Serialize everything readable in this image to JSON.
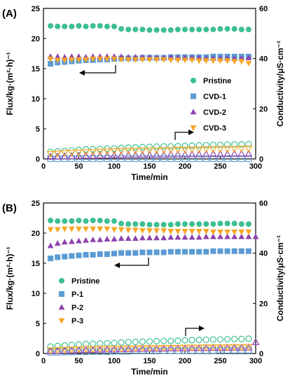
{
  "chart_data": [
    {
      "type": "scatter",
      "panel_label": "(A)",
      "xlabel": "Time/min",
      "ylabel": "Flux/kg·(m²·h)⁻¹",
      "y2label": "Conductivity/μS·cm⁻¹",
      "xlim": [
        0,
        300
      ],
      "ylim": [
        0,
        25
      ],
      "y2lim": [
        0,
        60
      ],
      "xticks": [
        "0",
        "50",
        "100",
        "150",
        "200",
        "250",
        "300"
      ],
      "yticks": [
        "0",
        "5",
        "10",
        "15",
        "20",
        "25"
      ],
      "y2ticks": [
        "0",
        "20",
        "40",
        "60"
      ],
      "grid": false,
      "legend_placement": "center-right",
      "series": [
        {
          "name": "Pristine",
          "color": "#3dbf8f",
          "marker": "circle",
          "x": [
            10,
            20,
            30,
            40,
            50,
            60,
            70,
            80,
            90,
            100,
            110,
            120,
            130,
            140,
            150,
            160,
            170,
            180,
            190,
            200,
            210,
            220,
            230,
            240,
            250,
            260,
            270,
            280,
            290
          ],
          "flux": [
            22.1,
            22.0,
            22.0,
            22.0,
            22.1,
            22.0,
            22.1,
            22.1,
            22.0,
            22.0,
            21.6,
            21.5,
            21.5,
            21.5,
            21.4,
            21.4,
            21.4,
            21.4,
            21.5,
            21.5,
            21.5,
            21.5,
            21.5,
            21.5,
            21.6,
            21.6,
            21.6,
            21.5,
            21.5
          ],
          "conductivity": [
            2.8,
            3.0,
            3.2,
            3.4,
            3.6,
            3.8,
            3.9,
            4.0,
            4.1,
            4.2,
            4.4,
            4.5,
            4.6,
            4.7,
            4.8,
            4.9,
            5.0,
            5.0,
            5.1,
            5.2,
            5.3,
            5.4,
            5.5,
            5.6,
            5.6,
            5.7,
            5.8,
            5.8,
            5.9
          ]
        },
        {
          "name": "CVD-1",
          "color": "#5b9bd5",
          "marker": "square",
          "x": [
            10,
            20,
            30,
            40,
            50,
            60,
            70,
            80,
            90,
            100,
            110,
            120,
            130,
            140,
            150,
            160,
            170,
            180,
            190,
            200,
            210,
            220,
            230,
            240,
            250,
            260,
            270,
            280,
            290
          ],
          "flux": [
            15.8,
            16.0,
            16.1,
            16.2,
            16.3,
            16.4,
            16.4,
            16.5,
            16.5,
            16.6,
            16.7,
            16.7,
            16.7,
            16.8,
            16.8,
            16.8,
            16.8,
            16.9,
            16.9,
            16.9,
            16.9,
            16.9,
            16.9,
            17.0,
            17.0,
            17.0,
            17.0,
            17.0,
            17.0
          ],
          "conductivity": [
            0.1,
            0.1,
            0.1,
            0.1,
            0.1,
            0.1,
            0.1,
            0.1,
            0.1,
            0.1,
            0.1,
            0.1,
            0.1,
            0.1,
            0.1,
            0.1,
            0.1,
            0.1,
            0.1,
            0.1,
            0.1,
            0.1,
            0.1,
            0.1,
            0.1,
            0.1,
            0.1,
            0.1,
            0.1
          ]
        },
        {
          "name": "CVD-2",
          "color": "#8e44ad",
          "marker": "triangle-up",
          "x": [
            10,
            20,
            30,
            40,
            50,
            60,
            70,
            80,
            90,
            100,
            110,
            120,
            130,
            140,
            150,
            160,
            170,
            180,
            190,
            200,
            210,
            220,
            230,
            240,
            250,
            260,
            270,
            280,
            290
          ],
          "flux": [
            17.0,
            17.0,
            16.9,
            17.0,
            17.0,
            16.9,
            17.0,
            17.0,
            17.0,
            17.0,
            17.0,
            16.9,
            16.9,
            16.9,
            16.9,
            16.8,
            16.8,
            16.9,
            16.8,
            16.8,
            16.8,
            16.8,
            16.7,
            16.7,
            16.7,
            16.7,
            16.7,
            16.7,
            16.8
          ],
          "conductivity": [
            0.8,
            0.9,
            1.0,
            1.0,
            1.1,
            1.2,
            1.2,
            1.3,
            1.3,
            1.4,
            1.4,
            1.5,
            1.5,
            1.5,
            1.6,
            1.6,
            1.6,
            1.7,
            1.7,
            1.7,
            1.8,
            1.8,
            1.8,
            1.9,
            1.9,
            1.9,
            2.0,
            2.0,
            2.0
          ]
        },
        {
          "name": "CVD-3",
          "color": "#f5a623",
          "marker": "triangle-down",
          "x": [
            10,
            20,
            30,
            40,
            50,
            60,
            70,
            80,
            90,
            100,
            110,
            120,
            130,
            140,
            150,
            160,
            170,
            180,
            190,
            200,
            210,
            220,
            230,
            240,
            250,
            260,
            270,
            280,
            290
          ],
          "flux": [
            16.6,
            16.4,
            16.4,
            16.5,
            16.5,
            16.5,
            16.6,
            16.6,
            16.6,
            16.6,
            16.5,
            16.5,
            16.5,
            16.5,
            16.5,
            16.5,
            16.5,
            16.4,
            16.4,
            16.4,
            16.4,
            16.3,
            16.3,
            16.3,
            16.3,
            16.3,
            16.2,
            16.2,
            15.9
          ],
          "conductivity": [
            2.0,
            2.2,
            2.4,
            2.5,
            2.6,
            2.7,
            2.8,
            2.9,
            3.0,
            3.1,
            3.2,
            3.3,
            3.3,
            3.4,
            3.5,
            3.5,
            3.6,
            3.6,
            3.7,
            3.7,
            3.8,
            3.8,
            3.9,
            3.9,
            4.0,
            4.0,
            4.0,
            4.1,
            4.1
          ]
        }
      ]
    },
    {
      "type": "scatter",
      "panel_label": "(B)",
      "xlabel": "Time/min",
      "ylabel": "Flux/kg·(m²·h)⁻¹",
      "y2label": "Conductivity/μS·cm⁻¹",
      "xlim": [
        0,
        300
      ],
      "ylim": [
        0,
        25
      ],
      "y2lim": [
        0,
        60
      ],
      "xticks": [
        "0",
        "50",
        "100",
        "150",
        "200",
        "250",
        "300"
      ],
      "yticks": [
        "0",
        "5",
        "10",
        "15",
        "20",
        "25"
      ],
      "y2ticks": [
        "0",
        "20",
        "40",
        "60"
      ],
      "grid": false,
      "legend_placement": "center-left",
      "series": [
        {
          "name": "Pristine",
          "color": "#3dbf8f",
          "marker": "circle",
          "x": [
            10,
            20,
            30,
            40,
            50,
            60,
            70,
            80,
            90,
            100,
            110,
            120,
            130,
            140,
            150,
            160,
            170,
            180,
            190,
            200,
            210,
            220,
            230,
            240,
            250,
            260,
            270,
            280,
            290
          ],
          "flux": [
            22.1,
            22.0,
            22.0,
            22.0,
            22.1,
            22.0,
            22.1,
            22.1,
            22.0,
            22.0,
            21.6,
            21.5,
            21.5,
            21.5,
            21.4,
            21.4,
            21.4,
            21.4,
            21.5,
            21.5,
            21.5,
            21.5,
            21.5,
            21.5,
            21.6,
            21.6,
            21.6,
            21.5,
            21.5
          ],
          "conductivity": [
            2.8,
            3.0,
            3.2,
            3.4,
            3.6,
            3.8,
            3.9,
            4.0,
            4.1,
            4.2,
            4.4,
            4.5,
            4.6,
            4.7,
            4.8,
            4.9,
            5.0,
            5.0,
            5.1,
            5.2,
            5.3,
            5.4,
            5.5,
            5.6,
            5.6,
            5.7,
            5.8,
            5.8,
            5.9
          ]
        },
        {
          "name": "P-1",
          "color": "#5b9bd5",
          "marker": "square",
          "x": [
            10,
            20,
            30,
            40,
            50,
            60,
            70,
            80,
            90,
            100,
            110,
            120,
            130,
            140,
            150,
            160,
            170,
            180,
            190,
            200,
            210,
            220,
            230,
            240,
            250,
            260,
            270,
            280,
            290
          ],
          "flux": [
            15.8,
            16.0,
            16.1,
            16.2,
            16.3,
            16.4,
            16.4,
            16.5,
            16.5,
            16.6,
            16.7,
            16.7,
            16.7,
            16.8,
            16.8,
            16.8,
            16.8,
            16.9,
            16.9,
            16.9,
            16.9,
            16.9,
            16.9,
            17.0,
            17.0,
            17.0,
            17.0,
            17.0,
            17.0
          ],
          "conductivity": [
            0.5,
            0.5,
            0.6,
            0.6,
            0.7,
            0.7,
            0.8,
            0.8,
            0.8,
            0.9,
            0.9,
            0.9,
            1.0,
            1.0,
            1.0,
            1.0,
            1.1,
            1.1,
            1.1,
            1.1,
            1.2,
            1.2,
            1.2,
            1.2,
            1.3,
            1.3,
            1.3,
            1.3,
            1.3
          ]
        },
        {
          "name": "P-2",
          "color": "#8e44ad",
          "marker": "triangle-up",
          "x": [
            10,
            20,
            30,
            40,
            50,
            60,
            70,
            80,
            90,
            100,
            110,
            120,
            130,
            140,
            150,
            160,
            170,
            180,
            190,
            200,
            210,
            220,
            230,
            240,
            250,
            260,
            270,
            280,
            290,
            300
          ],
          "flux": [
            17.9,
            18.3,
            18.5,
            18.6,
            18.7,
            18.8,
            18.9,
            18.9,
            19.0,
            19.0,
            19.1,
            19.1,
            19.1,
            19.2,
            19.2,
            19.2,
            19.2,
            19.3,
            19.3,
            19.3,
            19.3,
            19.3,
            19.4,
            19.4,
            19.4,
            19.4,
            19.4,
            19.4,
            19.4,
            19.4
          ],
          "conductivity": [
            0.9,
            1.0,
            1.1,
            1.2,
            1.3,
            1.4,
            1.4,
            1.5,
            1.6,
            1.6,
            1.7,
            1.7,
            1.8,
            1.8,
            1.9,
            1.9,
            1.9,
            2.0,
            2.0,
            2.0,
            2.1,
            2.1,
            2.1,
            2.2,
            2.2,
            2.2,
            2.3,
            2.3,
            2.3,
            4.5
          ]
        },
        {
          "name": "P-3",
          "color": "#f5a623",
          "marker": "triangle-down",
          "x": [
            10,
            20,
            30,
            40,
            50,
            60,
            70,
            80,
            90,
            100,
            110,
            120,
            130,
            140,
            150,
            160,
            170,
            180,
            190,
            200,
            210,
            220,
            230,
            240,
            250,
            260,
            270,
            280,
            290
          ],
          "flux": [
            20.6,
            20.6,
            20.7,
            20.7,
            20.7,
            20.7,
            20.7,
            20.7,
            20.7,
            20.6,
            20.6,
            20.5,
            20.5,
            20.4,
            20.4,
            20.4,
            20.4,
            20.3,
            20.3,
            20.3,
            20.3,
            20.3,
            20.3,
            20.2,
            20.2,
            20.2,
            20.2,
            20.2,
            20.2
          ],
          "conductivity": [
            1.3,
            1.4,
            1.5,
            1.6,
            1.7,
            1.8,
            1.8,
            1.9,
            1.9,
            2.0,
            2.0,
            2.1,
            2.1,
            2.2,
            2.2,
            2.2,
            2.3,
            2.3,
            2.3,
            2.4,
            2.4,
            2.4,
            2.5,
            2.5,
            2.5,
            2.5,
            2.6,
            2.6,
            2.6
          ]
        }
      ]
    }
  ]
}
